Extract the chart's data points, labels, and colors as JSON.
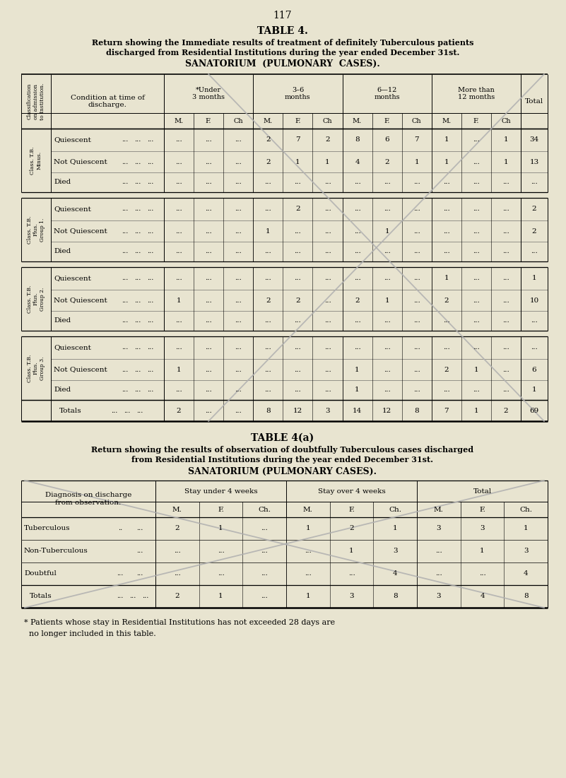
{
  "bg_color": "#e8e4d0",
  "page_number": "117",
  "title1": "TABLE 4.",
  "subtitle1_line1": "Return showing the Immediate results of treatment of definitely Tuberculous patients",
  "subtitle1_line2": "discharged from Residential Institutions during the year ended December 31st.",
  "sanatorium1": "SANATORIUM  (PULMONARY  CASES).",
  "table1": {
    "col_headers_top": [
      "*Under\n3 months",
      "3–6\nmonths",
      "6—12\nmonths",
      "More than\n12 months"
    ],
    "col_sub": [
      "M.",
      "F.",
      "Ch",
      "M.",
      "F.",
      "Ch",
      "M.",
      "F.",
      "Ch",
      "M.",
      "F.",
      "Ch"
    ],
    "row_groups": [
      {
        "label": "Class. T.B.\nMinus.",
        "rows": [
          {
            "condition": "Quiescent",
            "dots": [
              "...",
              "...",
              "...",
              "...",
              "...",
              "..."
            ],
            "data": [
              "2",
              "7",
              "2",
              "8",
              "6",
              "7",
              "1",
              "...",
              "1"
            ],
            "total": "34"
          },
          {
            "condition": "Not Quiescent",
            "dots": [
              "...",
              "...",
              "...",
              "...",
              "...",
              "..."
            ],
            "data": [
              "2",
              "1",
              "1",
              "4",
              "2",
              "1",
              "1",
              "...",
              "1"
            ],
            "total": "13"
          },
          {
            "condition": "Died",
            "dots": [
              "...",
              "...",
              "...",
              "...",
              "...",
              "..."
            ],
            "data": [
              "...",
              "...",
              "...",
              "...",
              "...",
              "...",
              "...",
              "...",
              "..."
            ],
            "total": "..."
          }
        ]
      },
      {
        "label": "Class. T.B.\nPlus.\nGroup 1.",
        "rows": [
          {
            "condition": "Quiescent",
            "dots": [
              "...",
              "...",
              "...",
              "...",
              "...",
              "..."
            ],
            "data": [
              "...",
              "2",
              "...",
              "...",
              "...",
              "...",
              "...",
              "...",
              "..."
            ],
            "total": "2"
          },
          {
            "condition": "Not Quiescent",
            "dots": [
              "...",
              "...",
              "...",
              "...",
              "...",
              "..."
            ],
            "data": [
              "1",
              "...",
              "...",
              "...",
              "1",
              "...",
              "...",
              "...",
              "..."
            ],
            "total": "2"
          },
          {
            "condition": "Died",
            "dots": [
              "...",
              "...",
              "...",
              "...",
              "...",
              "..."
            ],
            "data": [
              "...",
              "...",
              "...",
              "...",
              "...",
              "...",
              "...",
              "...",
              "..."
            ],
            "total": "..."
          }
        ]
      },
      {
        "label": "Class. T.B.\nPlus.\nGroup 2.",
        "rows": [
          {
            "condition": "Quiescent",
            "dots": [
              "...",
              "...",
              "...",
              "...",
              "...",
              "..."
            ],
            "data": [
              "...",
              "...",
              "...",
              "...",
              "...",
              "...",
              "1",
              "...",
              "..."
            ],
            "total": "1"
          },
          {
            "condition": "Not Quiescent",
            "dots": [
              "1",
              "...",
              "...",
              "...",
              "...",
              "..."
            ],
            "data": [
              "2",
              "2",
              "...",
              "2",
              "1",
              "...",
              "2",
              "...",
              "..."
            ],
            "total": "10"
          },
          {
            "condition": "Died",
            "dots": [
              "...",
              "...",
              "...",
              "...",
              "...",
              "..."
            ],
            "data": [
              "...",
              "...",
              "...",
              "...",
              "...",
              "...",
              "...",
              "...",
              "..."
            ],
            "total": "..."
          }
        ]
      },
      {
        "label": "Class. T.B.\nPlus.\nGroup 3.",
        "rows": [
          {
            "condition": "Quiescent",
            "dots": [
              "...",
              "...",
              "...",
              "...",
              "...",
              "..."
            ],
            "data": [
              "...",
              "...",
              "...",
              "...",
              "...",
              "...",
              "...",
              "...",
              "..."
            ],
            "total": "..."
          },
          {
            "condition": "Not Quiescent",
            "dots": [
              "1",
              "...",
              "...",
              "1",
              "...",
              "..."
            ],
            "data": [
              "...",
              "...",
              "...",
              "1",
              "...",
              "...",
              "2",
              "1",
              "..."
            ],
            "total": "6"
          },
          {
            "condition": "Died",
            "dots": [
              "...",
              "...",
              "...",
              "...",
              "...",
              "..."
            ],
            "data": [
              "...",
              "...",
              "...",
              "1",
              "...",
              "...",
              "...",
              "...",
              "..."
            ],
            "total": "1"
          }
        ]
      }
    ],
    "totals_row": {
      "dots": [
        "2",
        "...",
        "...",
        "...",
        "...",
        "..."
      ],
      "data": [
        "8",
        "12",
        "3",
        "14",
        "12",
        "8",
        "7",
        "1",
        "2"
      ],
      "total": "69"
    }
  },
  "title2": "TABLE 4(a)",
  "subtitle2_line1": "Return showing the results of observation of doubtfully Tuberculous cases discharged",
  "subtitle2_line2": "from Residential Institutions during the year ended December 31st.",
  "sanatorium2": "SANATORIUM (PULMONARY CASES).",
  "table2": {
    "col_headers_top": [
      "Stay under 4 weeks",
      "Stay over 4 weeks",
      "Total"
    ],
    "col_sub": [
      "M.",
      "F.",
      "Ch.",
      "M.",
      "F.",
      "Ch.",
      "M.",
      "F.",
      "Ch."
    ],
    "rows": [
      {
        "diagnosis": "Tuberculous",
        "extra_dots": [
          "..",
          "..."
        ],
        "data": [
          "2",
          "1",
          "...",
          "1",
          "2",
          "1",
          "3",
          "3",
          "1"
        ]
      },
      {
        "diagnosis": "Non-Tuberculous",
        "extra_dots": [
          "..."
        ],
        "data": [
          "...",
          "...",
          "...",
          "...",
          "1",
          "3",
          "...",
          "1",
          "3"
        ]
      },
      {
        "diagnosis": "Doubtful",
        "extra_dots": [
          "...",
          "..."
        ],
        "data": [
          "...",
          "...",
          "...",
          "...",
          "...",
          "4",
          "...",
          "...",
          "4"
        ]
      }
    ],
    "totals_row": {
      "data": [
        "2",
        "1",
        "...",
        "1",
        "3",
        "8",
        "3",
        "4",
        "8"
      ]
    }
  },
  "footnote_line1": "* Patients whose stay in Residential Institutions has not exceeded 28 days are",
  "footnote_line2": "  no longer included in this table."
}
